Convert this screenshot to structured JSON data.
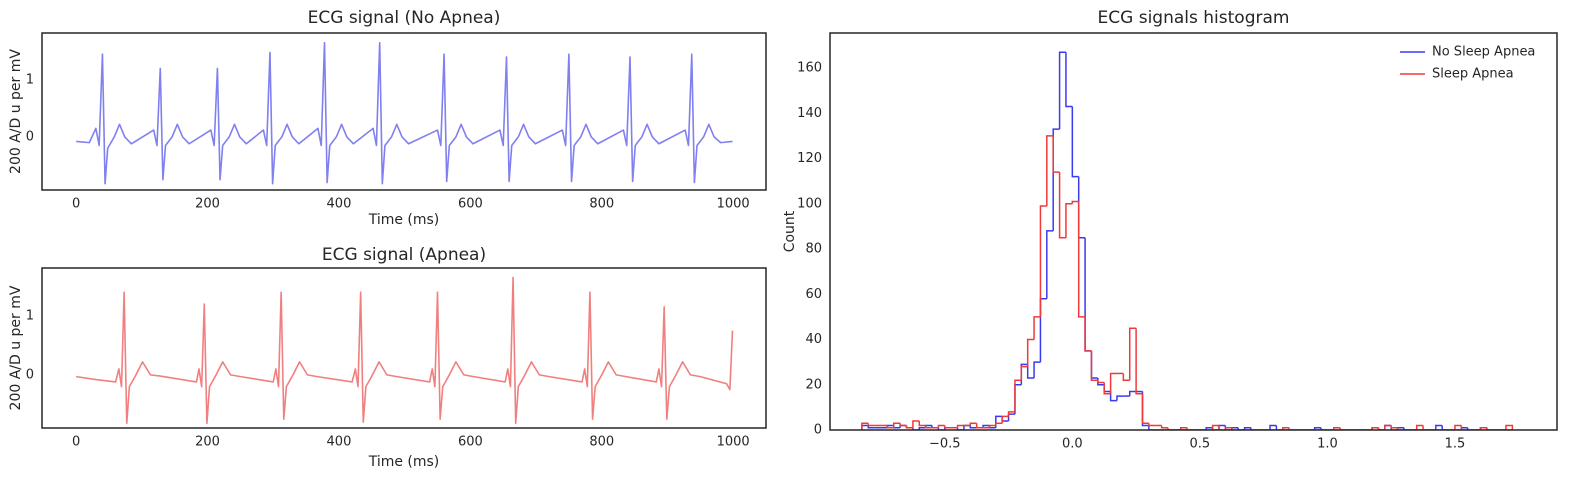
{
  "chart_data": [
    {
      "type": "line",
      "title": "ECG signal (No Apnea)",
      "xlabel": "Time (ms)",
      "ylabel": "200 A/D u per mV",
      "color": "#8080f0",
      "xlim": [
        -52,
        1050
      ],
      "ylim": [
        -0.93,
        1.82
      ],
      "xticks": [
        0,
        200,
        400,
        600,
        800,
        1000
      ],
      "yticks": [
        0,
        1
      ],
      "x": [
        0,
        20,
        30,
        35,
        40,
        44,
        48,
        58,
        66,
        74,
        84,
        118,
        123,
        128,
        132,
        136,
        146,
        154,
        162,
        172,
        205,
        210,
        215,
        219,
        223,
        233,
        241,
        249,
        259,
        285,
        290,
        295,
        299,
        303,
        313,
        321,
        329,
        339,
        368,
        373,
        378,
        382,
        386,
        396,
        404,
        412,
        422,
        452,
        457,
        462,
        466,
        470,
        480,
        488,
        496,
        506,
        550,
        555,
        560,
        564,
        568,
        578,
        586,
        594,
        604,
        645,
        650,
        655,
        659,
        663,
        673,
        681,
        689,
        699,
        740,
        745,
        750,
        754,
        758,
        768,
        776,
        784,
        794,
        833,
        838,
        843,
        847,
        851,
        861,
        869,
        877,
        887,
        927,
        932,
        937,
        941,
        945,
        955,
        963,
        971,
        981,
        999
      ],
      "values": [
        -0.08,
        -0.1,
        0.15,
        -0.15,
        1.45,
        -0.82,
        -0.2,
        0,
        0.22,
        0,
        -0.12,
        0.12,
        -0.15,
        1.2,
        -0.75,
        -0.15,
        0,
        0.22,
        0,
        -0.12,
        0.12,
        -0.15,
        1.2,
        -0.75,
        -0.15,
        0,
        0.22,
        0,
        -0.12,
        0.12,
        -0.15,
        1.48,
        -0.82,
        -0.15,
        0,
        0.22,
        0,
        -0.12,
        0.15,
        -0.15,
        1.65,
        -0.8,
        -0.15,
        0,
        0.22,
        0,
        -0.12,
        0.15,
        -0.15,
        1.65,
        -0.82,
        -0.15,
        0,
        0.22,
        0,
        -0.12,
        0.12,
        -0.15,
        1.45,
        -0.78,
        -0.15,
        0,
        0.22,
        0,
        -0.12,
        0.12,
        -0.15,
        1.4,
        -0.78,
        -0.15,
        0,
        0.22,
        0,
        -0.12,
        0.12,
        -0.15,
        1.45,
        -0.78,
        -0.15,
        0,
        0.22,
        0,
        -0.12,
        0.12,
        -0.15,
        1.4,
        -0.78,
        -0.15,
        0,
        0.22,
        0,
        -0.12,
        0.12,
        -0.15,
        1.45,
        -0.8,
        -0.15,
        0,
        0.22,
        0,
        -0.1,
        -0.08
      ]
    },
    {
      "type": "line",
      "title": "ECG signal (Apnea)",
      "xlabel": "Time (ms)",
      "ylabel": "200 A/D u per mV",
      "color": "#f08080",
      "xlim": [
        -52,
        1050
      ],
      "ylim": [
        -0.9,
        1.81
      ],
      "xticks": [
        0,
        200,
        400,
        600,
        800,
        1000
      ],
      "yticks": [
        0,
        1
      ],
      "x": [
        0,
        30,
        60,
        65,
        69,
        73,
        77,
        81,
        91,
        101,
        113,
        128,
        183,
        187,
        191,
        195,
        199,
        203,
        213,
        223,
        235,
        250,
        300,
        304,
        308,
        312,
        316,
        320,
        330,
        340,
        352,
        367,
        420,
        425,
        429,
        433,
        437,
        441,
        451,
        461,
        473,
        488,
        538,
        542,
        546,
        550,
        554,
        558,
        568,
        578,
        590,
        605,
        653,
        657,
        661,
        665,
        669,
        673,
        683,
        693,
        705,
        720,
        770,
        774,
        778,
        782,
        786,
        790,
        800,
        810,
        822,
        837,
        883,
        887,
        891,
        895,
        899,
        903,
        913,
        923,
        935,
        950,
        990,
        995,
        999
      ],
      "values": [
        -0.03,
        -0.08,
        -0.12,
        0.1,
        -0.2,
        1.4,
        -0.82,
        -0.2,
        0,
        0.22,
        0,
        -0.02,
        -0.12,
        0.1,
        -0.2,
        1.2,
        -0.82,
        -0.2,
        0,
        0.22,
        0,
        -0.03,
        -0.12,
        0.1,
        -0.2,
        1.4,
        -0.75,
        -0.2,
        0,
        0.22,
        0,
        -0.03,
        -0.12,
        0.1,
        -0.2,
        1.4,
        -0.8,
        -0.2,
        0,
        0.22,
        0,
        -0.03,
        -0.12,
        0.1,
        -0.2,
        1.4,
        -0.75,
        -0.2,
        0,
        0.22,
        0,
        -0.03,
        -0.12,
        0.1,
        -0.2,
        1.65,
        -0.82,
        -0.2,
        0,
        0.22,
        0,
        -0.03,
        -0.12,
        0.1,
        -0.2,
        1.4,
        -0.75,
        -0.2,
        0,
        0.22,
        0,
        -0.03,
        -0.12,
        0.1,
        -0.2,
        1.15,
        -0.75,
        -0.2,
        0,
        0.22,
        0,
        -0.03,
        -0.15,
        -0.25,
        0.75
      ]
    },
    {
      "type": "histogram",
      "title": "ECG signals histogram",
      "ylabel": "Count",
      "legend": "upper right",
      "xlim": [
        -0.95,
        1.9
      ],
      "ylim": [
        0,
        175.5
      ],
      "xticks": [
        {
          "value": -0.5,
          "label": "−0.5"
        },
        {
          "value": 0,
          "label": "0.0"
        },
        0.5,
        {
          "value": 1,
          "label": "1.0"
        },
        1.5
      ],
      "yticks": [
        0,
        20,
        40,
        60,
        80,
        100,
        120,
        140,
        160
      ],
      "bins": [
        -0.825,
        -0.8,
        -0.775,
        -0.75,
        -0.725,
        -0.7,
        -0.675,
        -0.65,
        -0.625,
        -0.6,
        -0.575,
        -0.55,
        -0.525,
        -0.5,
        -0.475,
        -0.45,
        -0.425,
        -0.4,
        -0.375,
        -0.35,
        -0.325,
        -0.3,
        -0.275,
        -0.25,
        -0.225,
        -0.2,
        -0.175,
        -0.15,
        -0.125,
        -0.1,
        -0.075,
        -0.05,
        -0.025,
        0,
        0.025,
        0.05,
        0.075,
        0.1,
        0.125,
        0.15,
        0.175,
        0.2,
        0.225,
        0.25,
        0.275,
        0.3,
        0.325,
        0.35,
        0.375,
        0.4,
        0.425,
        0.45,
        0.475,
        0.5,
        0.525,
        0.55,
        0.575,
        0.6,
        0.625,
        0.65,
        0.675,
        0.7,
        0.725,
        0.75,
        0.775,
        0.8,
        0.825,
        0.85,
        0.875,
        0.9,
        0.925,
        0.95,
        0.975,
        1,
        1.025,
        1.05,
        1.075,
        1.1,
        1.125,
        1.15,
        1.175,
        1.2,
        1.225,
        1.25,
        1.275,
        1.3,
        1.325,
        1.35,
        1.375,
        1.4,
        1.425,
        1.45,
        1.475,
        1.5,
        1.525,
        1.55,
        1.575,
        1.6,
        1.625,
        1.65,
        1.675,
        1.7,
        1.725
      ],
      "series": [
        {
          "name": "No Sleep Apnea",
          "color": "#3a3af0",
          "values": [
            2,
            1,
            1,
            1,
            2,
            1,
            2,
            1,
            0,
            1,
            2,
            1,
            0,
            1,
            1,
            0,
            2,
            1,
            1,
            2,
            1,
            6,
            4,
            7,
            20,
            29,
            23,
            30,
            58,
            88,
            133,
            167,
            143,
            112,
            85,
            35,
            23,
            20,
            17,
            13,
            15,
            15,
            17,
            17,
            2,
            0,
            0,
            0,
            0,
            0,
            0,
            0,
            0,
            0,
            1,
            0,
            2,
            0,
            1,
            0,
            1,
            0,
            0,
            0,
            2,
            0,
            0,
            0,
            0,
            0,
            0,
            1,
            0,
            0,
            0,
            0,
            0,
            0,
            0,
            0,
            1,
            0,
            2,
            0,
            1,
            0,
            0,
            0,
            0,
            0,
            2,
            0,
            0,
            0,
            1,
            0,
            0,
            1,
            0,
            0,
            0,
            0
          ]
        },
        {
          "name": "Sleep Apnea",
          "color": "#f03a3a",
          "values": [
            3,
            2,
            2,
            2,
            1,
            3,
            2,
            1,
            4,
            2,
            1,
            1,
            2,
            1,
            1,
            2,
            2,
            3,
            1,
            1,
            2,
            3,
            6,
            8,
            22,
            28,
            40,
            50,
            99,
            130,
            114,
            85,
            100,
            101,
            50,
            35,
            22,
            21,
            16,
            25,
            25,
            22,
            45,
            16,
            3,
            2,
            2,
            1,
            0,
            0,
            1,
            0,
            0,
            0,
            0,
            2,
            0,
            1,
            0,
            0,
            0,
            0,
            0,
            0,
            0,
            0,
            1,
            0,
            0,
            0,
            0,
            0,
            0,
            0,
            1,
            0,
            0,
            0,
            0,
            0,
            1,
            0,
            2,
            1,
            0,
            0,
            0,
            2,
            0,
            0,
            0,
            0,
            0,
            2,
            0,
            0,
            0,
            1,
            0,
            0,
            0,
            2
          ]
        }
      ]
    }
  ]
}
